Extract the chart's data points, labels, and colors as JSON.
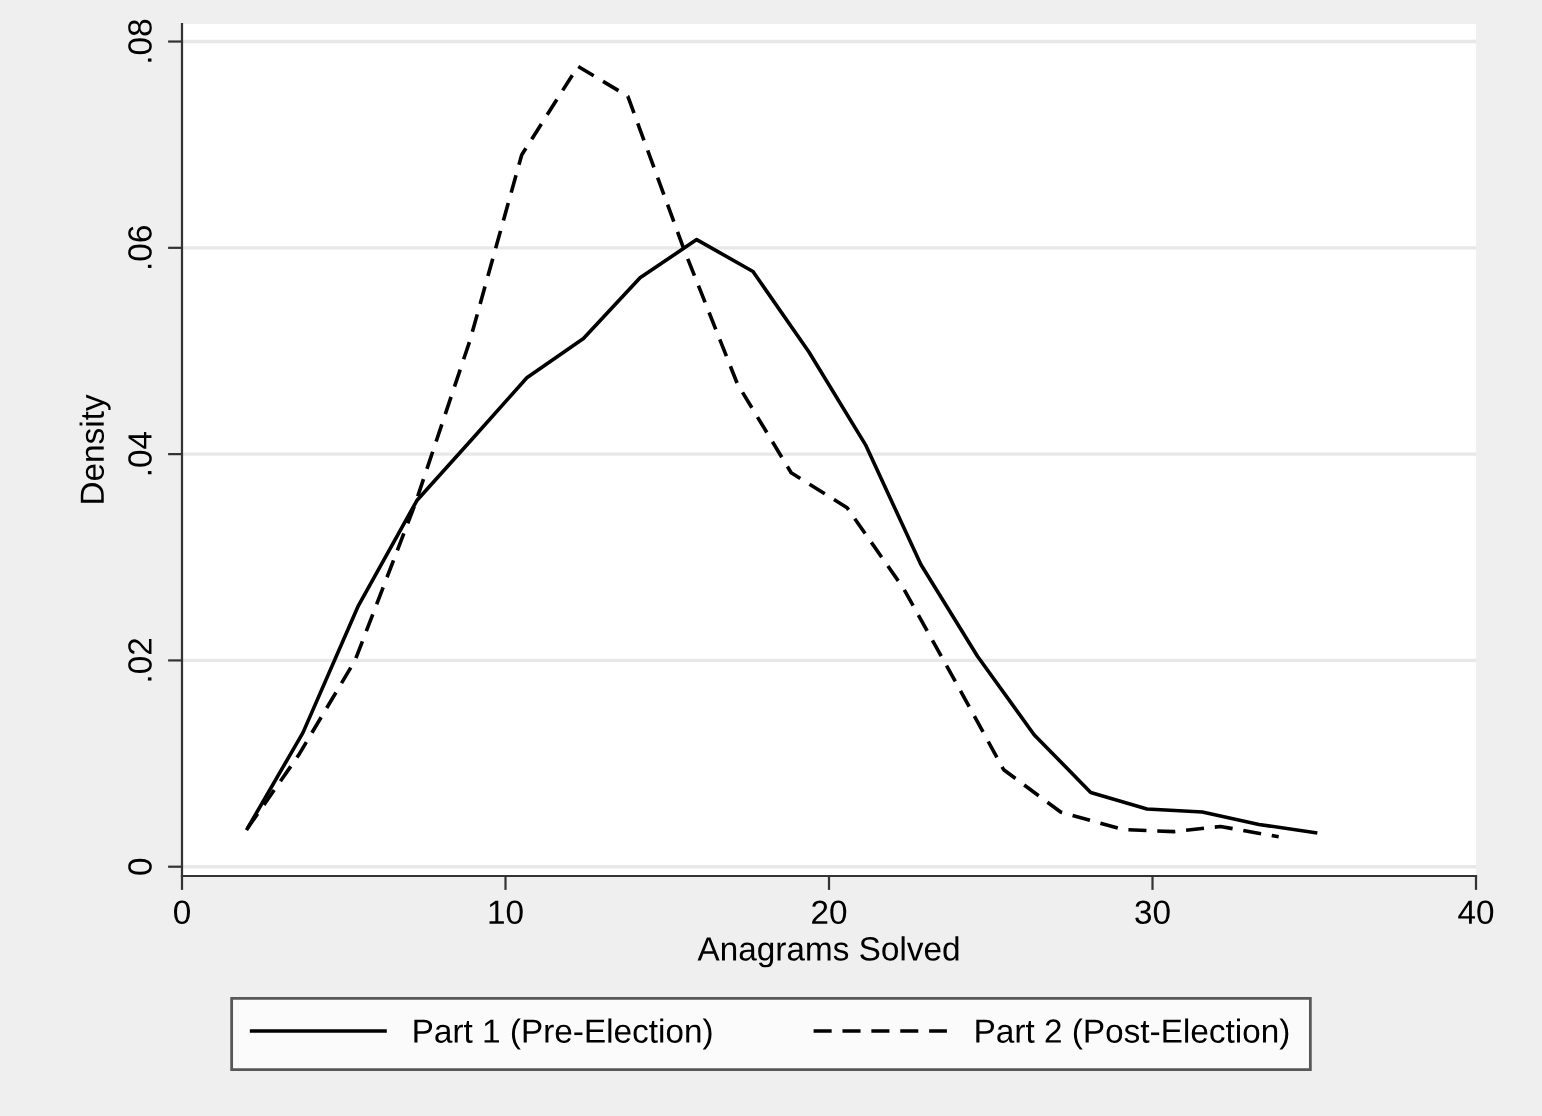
{
  "chart_data": {
    "type": "line",
    "xlabel": "Anagrams Solved",
    "ylabel": "Density",
    "xlim": [
      0,
      40
    ],
    "xticks": [
      0,
      10,
      20,
      30,
      40
    ],
    "ylim": [
      -0.0009,
      0.0817
    ],
    "yticks": [
      0,
      {
        "value": 0.02,
        "label": ".02"
      },
      {
        "value": 0.04,
        "label": ".04"
      },
      {
        "value": 0.06,
        "label": ".06"
      },
      {
        "value": 0.08,
        "label": ".08"
      }
    ],
    "grid": "y",
    "legend": "bottom",
    "series": [
      {
        "name": "Part 1 (Pre-Election)",
        "color": "#000000",
        "line_style": "solid",
        "x": [
          2.02,
          3.74,
          5.45,
          7.26,
          8.95,
          10.66,
          12.41,
          14.16,
          15.91,
          17.65,
          19.38,
          21.13,
          22.84,
          24.59,
          26.34,
          28.09,
          29.83,
          31.54,
          33.29,
          35.04
        ],
        "values": [
          0.0037,
          0.013,
          0.0253,
          0.0355,
          0.0414,
          0.0474,
          0.0512,
          0.0571,
          0.0608,
          0.0577,
          0.0499,
          0.0409,
          0.0293,
          0.0204,
          0.0128,
          0.0072,
          0.0056,
          0.0053,
          0.0041,
          0.0033
        ]
      },
      {
        "name": "Part 2 (Post-Election)",
        "color": "#000000",
        "line_style": "dashed",
        "x": [
          2.02,
          3.6,
          5.35,
          7.2,
          8.9,
          10.5,
          12.24,
          13.78,
          15.5,
          17.17,
          18.83,
          20.56,
          22.3,
          23.9,
          25.4,
          27.16,
          29.1,
          30.66,
          32.1,
          33.9
        ],
        "values": [
          0.0037,
          0.0108,
          0.02,
          0.0351,
          0.051,
          0.069,
          0.0776,
          0.0747,
          0.06,
          0.0468,
          0.0382,
          0.0348,
          0.027,
          0.018,
          0.0094,
          0.0053,
          0.0036,
          0.0034,
          0.0039,
          0.0029
        ]
      }
    ]
  }
}
